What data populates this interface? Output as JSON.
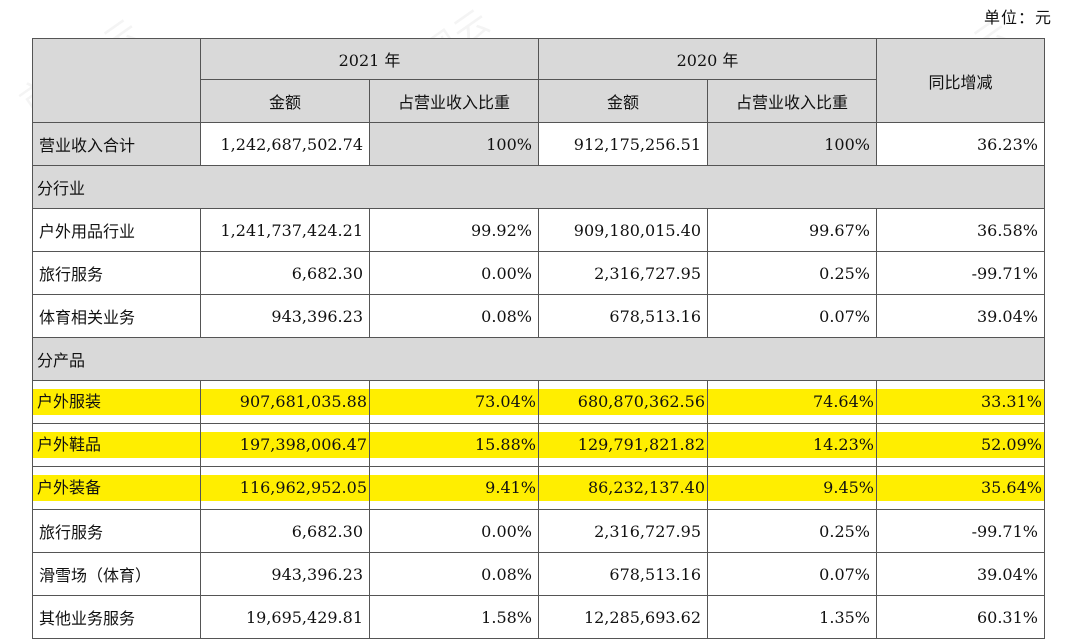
{
  "unit_label": "单位：元",
  "headers": {
    "year_2021": "2021 年",
    "year_2020": "2020 年",
    "yoy": "同比增减",
    "amount": "金额",
    "ratio": "占营业收入比重"
  },
  "total": {
    "label": "营业收入合计",
    "a2021": "1,242,687,502.74",
    "r2021": "100%",
    "a2020": "912,175,256.51",
    "r2020": "100%",
    "yoy": "36.23%"
  },
  "section_industry": "分行业",
  "industry_rows": [
    {
      "label": "户外用品行业",
      "a2021": "1,241,737,424.21",
      "r2021": "99.92%",
      "a2020": "909,180,015.40",
      "r2020": "99.67%",
      "yoy": "36.58%"
    },
    {
      "label": "旅行服务",
      "a2021": "6,682.30",
      "r2021": "0.00%",
      "a2020": "2,316,727.95",
      "r2020": "0.25%",
      "yoy": "-99.71%"
    },
    {
      "label": "体育相关业务",
      "a2021": "943,396.23",
      "r2021": "0.08%",
      "a2020": "678,513.16",
      "r2020": "0.07%",
      "yoy": "39.04%"
    }
  ],
  "section_product": "分产品",
  "product_rows": [
    {
      "label": "户外服装",
      "a2021": "907,681,035.88",
      "r2021": "73.04%",
      "a2020": "680,870,362.56",
      "r2020": "74.64%",
      "yoy": "33.31%"
    },
    {
      "label": "户外鞋品",
      "a2021": "197,398,006.47",
      "r2021": "15.88%",
      "a2020": "129,791,821.82",
      "r2020": "14.23%",
      "yoy": "52.09%"
    },
    {
      "label": "户外装备",
      "a2021": "116,962,952.05",
      "r2021": "9.41%",
      "a2020": "86,232,137.40",
      "r2020": "9.45%",
      "yoy": "35.64%"
    },
    {
      "label": "旅行服务",
      "a2021": "6,682.30",
      "r2021": "0.00%",
      "a2020": "2,316,727.95",
      "r2020": "0.25%",
      "yoy": "-99.71%"
    },
    {
      "label": "滑雪场（体育）",
      "a2021": "943,396.23",
      "r2021": "0.08%",
      "a2020": "678,513.16",
      "r2020": "0.07%",
      "yoy": "39.04%"
    },
    {
      "label": "其他业务服务",
      "a2021": "19,695,429.81",
      "r2021": "1.58%",
      "a2020": "12,285,693.62",
      "r2020": "1.35%",
      "yoy": "60.31%"
    }
  ],
  "watermark": "市值风云",
  "colors": {
    "highlight": "#ffee00",
    "header_bg": "#d9d9d9"
  }
}
